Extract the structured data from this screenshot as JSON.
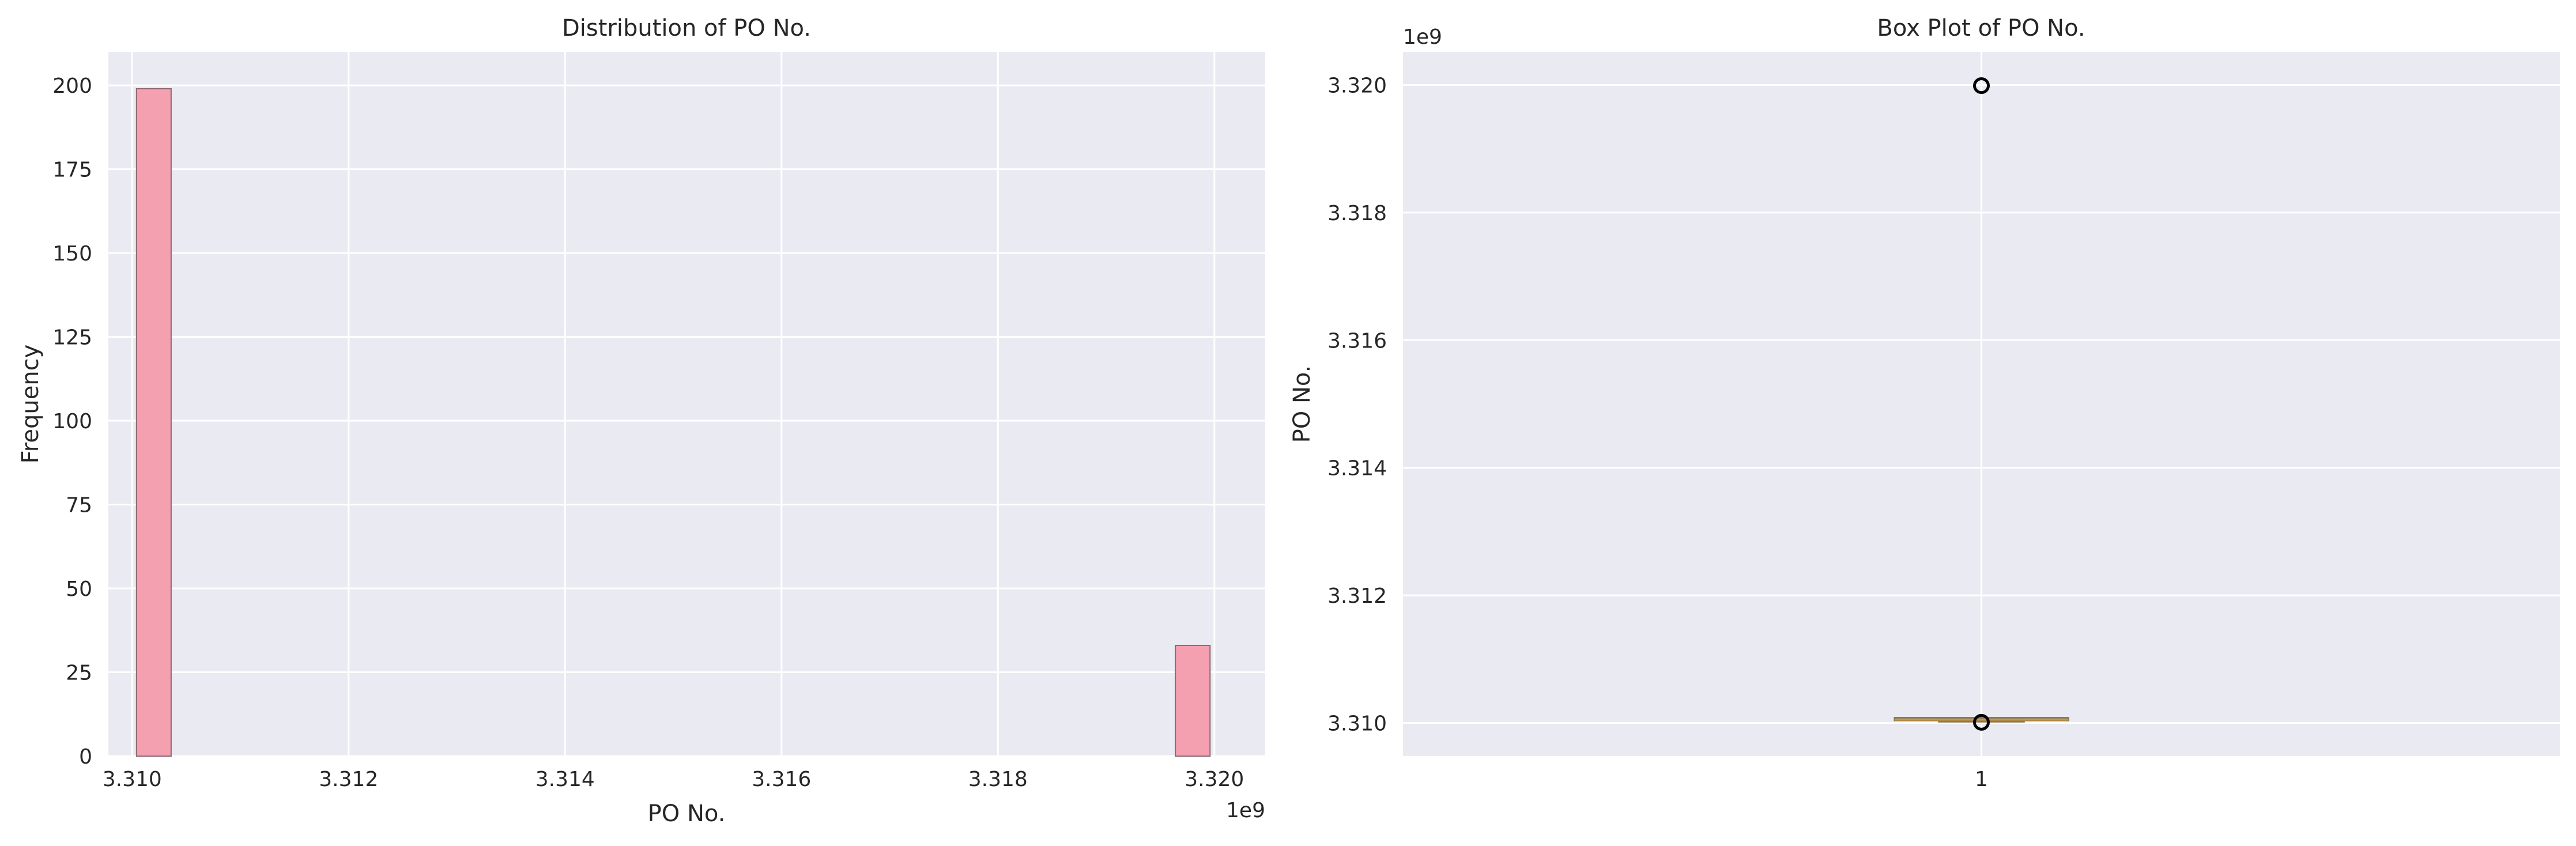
{
  "colors": {
    "axes_bg": "#eaeaf2",
    "grid": "#ffffff",
    "bar_fill": "#f4a0b0",
    "bar_edge": "#8a6a70",
    "box_edge": "#8a7a50",
    "median": "#d4943c",
    "flier_edge": "#000000"
  },
  "chart_data": [
    {
      "type": "bar",
      "subtype": "histogram",
      "title": "Distribution of PO No.",
      "xlabel": "PO No.",
      "ylabel": "Frequency",
      "x_offset_label": "1e9",
      "xlim": [
        3.30978,
        3.32047
      ],
      "ylim": [
        0,
        210
      ],
      "xticks": [
        3.31,
        3.312,
        3.314,
        3.316,
        3.318,
        3.32
      ],
      "xtick_labels": [
        "3.310",
        "3.312",
        "3.314",
        "3.316",
        "3.318",
        "3.320"
      ],
      "yticks": [
        0,
        25,
        50,
        75,
        100,
        125,
        150,
        175,
        200
      ],
      "ytick_labels": [
        "0",
        "25",
        "50",
        "75",
        "100",
        "125",
        "150",
        "175",
        "200"
      ],
      "bins": [
        {
          "x0": 3.31004,
          "x1": 3.31036,
          "count": 199
        },
        {
          "x0": 3.31964,
          "x1": 3.31996,
          "count": 33
        }
      ],
      "grid": true
    },
    {
      "type": "box",
      "title": "Box Plot of PO No.",
      "ylabel": "PO No.",
      "y_offset_label": "1e9",
      "ylim": [
        3.30948,
        3.32052
      ],
      "yticks": [
        3.31,
        3.312,
        3.314,
        3.316,
        3.318,
        3.32
      ],
      "ytick_labels": [
        "3.310",
        "3.312",
        "3.314",
        "3.316",
        "3.318",
        "3.320"
      ],
      "categories": [
        "1"
      ],
      "box": {
        "q1": 3.31003,
        "median": 3.31005,
        "q3": 3.31007,
        "whisker_low": 3.31002,
        "whisker_high": 3.31008
      },
      "outliers": [
        3.31001,
        3.31999
      ],
      "grid": true
    }
  ]
}
